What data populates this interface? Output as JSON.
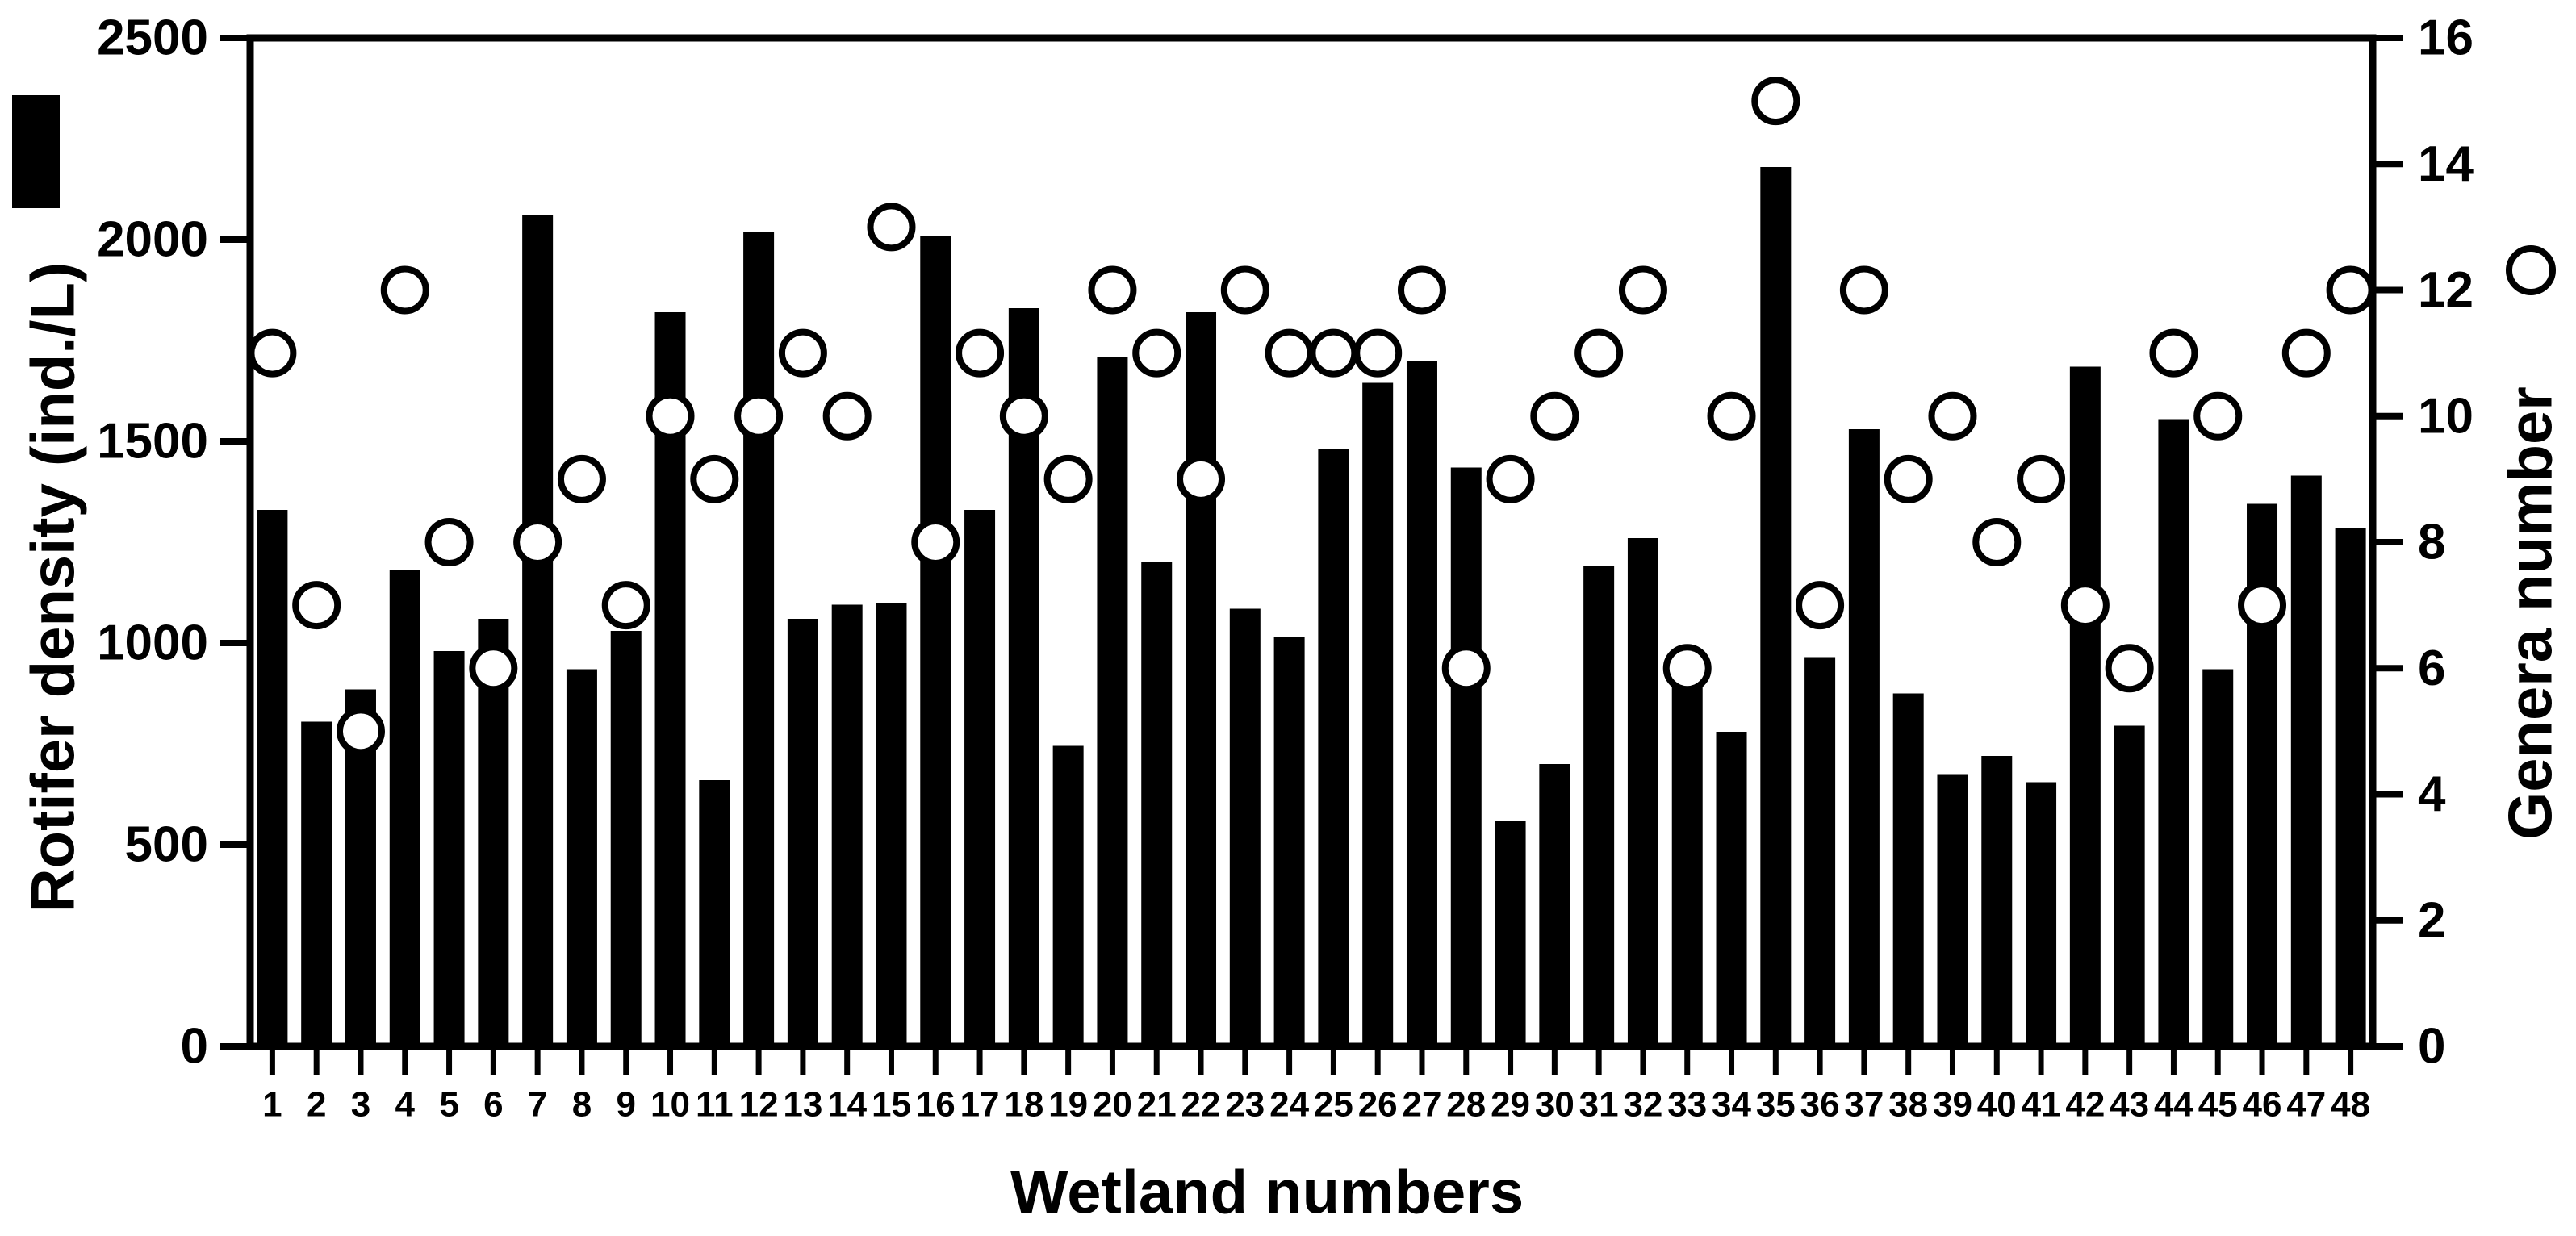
{
  "figure": {
    "xlabel": "Wetland numbers",
    "ylabel_left": "Rotifer density (ind./L)",
    "ylabel_right": "Genera number"
  },
  "chart_data": {
    "type": "bar",
    "subtype": "bar-with-scatter-overlay",
    "title": "",
    "xlabel": "Wetland numbers",
    "ylabel_left": "Rotifer density (ind./L)",
    "ylabel_right": "Genera number",
    "grid": false,
    "categories": [
      "1",
      "2",
      "3",
      "4",
      "5",
      "6",
      "7",
      "8",
      "9",
      "10",
      "11",
      "12",
      "13",
      "14",
      "15",
      "16",
      "17",
      "18",
      "19",
      "20",
      "21",
      "22",
      "23",
      "24",
      "25",
      "26",
      "27",
      "28",
      "29",
      "30",
      "31",
      "32",
      "33",
      "34",
      "35",
      "36",
      "37",
      "38",
      "39",
      "40",
      "41",
      "42",
      "43",
      "44",
      "45",
      "46",
      "47",
      "48"
    ],
    "series": [
      {
        "name": "Rotifer density (ind./L)",
        "type": "bar",
        "axis": "left",
        "color": "#000000",
        "values": [
          1330,
          805,
          885,
          1180,
          980,
          1060,
          2060,
          935,
          1030,
          1820,
          660,
          2020,
          1060,
          1095,
          1100,
          2010,
          1330,
          1830,
          745,
          1710,
          1200,
          1820,
          1085,
          1015,
          1480,
          1645,
          1700,
          1435,
          560,
          700,
          1190,
          1260,
          945,
          780,
          2180,
          965,
          1530,
          875,
          675,
          720,
          655,
          1685,
          795,
          1555,
          935,
          1345,
          1415,
          1285
        ]
      },
      {
        "name": "Genera number",
        "type": "scatter",
        "axis": "right",
        "marker": "open-circle",
        "marker_fill": "#ffffff",
        "marker_stroke": "#000000",
        "values": [
          11,
          7,
          5,
          12,
          8,
          6,
          8,
          9,
          7,
          10,
          9,
          10,
          11,
          10,
          13,
          8,
          11,
          10,
          9,
          12,
          11,
          9,
          12,
          11,
          11,
          11,
          12,
          6,
          9,
          10,
          11,
          12,
          6,
          10,
          15,
          7,
          12,
          9,
          10,
          8,
          9,
          7,
          6,
          11,
          10,
          7,
          11,
          12
        ]
      }
    ],
    "y_left": {
      "min": 0,
      "max": 2500,
      "tick_step": 500,
      "tick_labels": [
        "0",
        "500",
        "1000",
        "1500",
        "2000",
        "2500"
      ]
    },
    "y_right": {
      "min": 0,
      "max": 16,
      "tick_step": 2,
      "tick_labels": [
        "0",
        "2",
        "4",
        "6",
        "8",
        "10",
        "12",
        "14",
        "16"
      ]
    },
    "legend": {
      "bar_swatch": "filled-black-rectangle",
      "scatter_marker": "open-circle",
      "bar_swatch_position": "top-left",
      "scatter_marker_position": "right-side"
    }
  }
}
